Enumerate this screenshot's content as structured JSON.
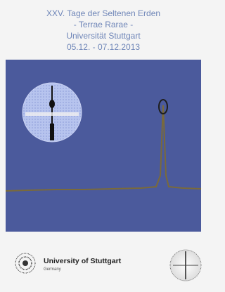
{
  "header": {
    "lines": [
      "XXV. Tage der Seltenen Erden",
      "- Terrae Rarae -",
      "Universität Stuttgart",
      "05.12. - 07.12.2013"
    ]
  },
  "footer": {
    "logo_name": "University of Stuttgart",
    "logo_country": "Germany"
  }
}
